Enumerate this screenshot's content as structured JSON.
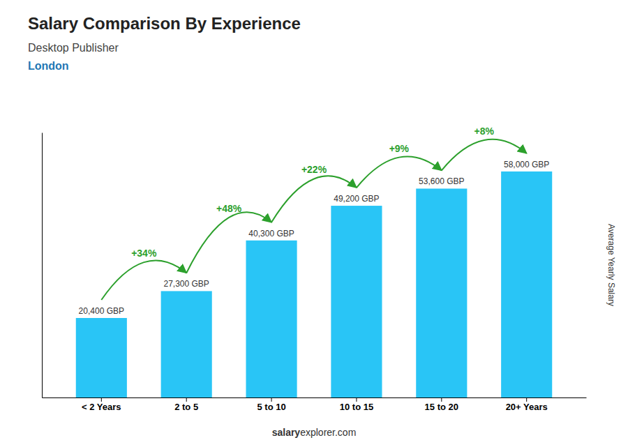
{
  "chart_data": {
    "type": "bar",
    "title": "Salary Comparison By Experience",
    "subtitle": [
      "Desktop Publisher",
      "London"
    ],
    "categories": [
      "< 2 Years",
      "2 to 5",
      "5 to 10",
      "10 to 15",
      "15 to 20",
      "20+ Years"
    ],
    "values": [
      20400,
      27300,
      40300,
      49200,
      53600,
      58000
    ],
    "value_labels": [
      "20,400 GBP",
      "27,300 GBP",
      "40,300 GBP",
      "49,200 GBP",
      "53,600 GBP",
      "58,000 GBP"
    ],
    "data_labels": true,
    "color": "#29c5f6",
    "ylim": [
      0,
      68000
    ],
    "tick_labels": "x",
    "grid": false,
    "ylabel": "Average Yearly Salary",
    "annotations": [
      "+34%",
      "+48%",
      "+22%",
      "+9%",
      "+8%"
    ],
    "footer": [
      "salary",
      "explorer.com"
    ]
  }
}
